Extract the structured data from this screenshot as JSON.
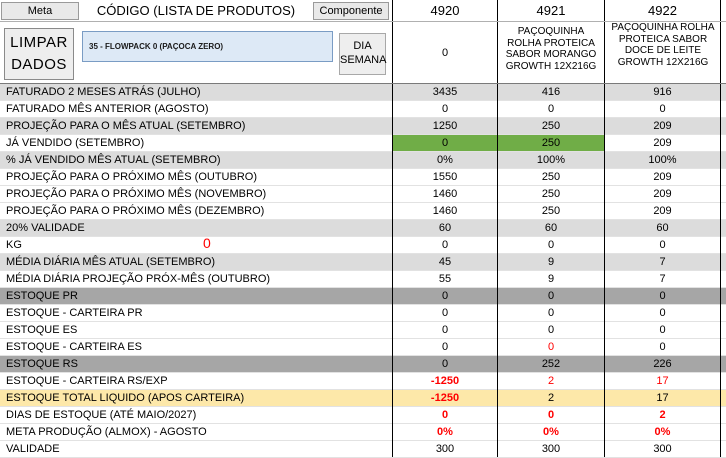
{
  "header": {
    "meta_button": "Meta",
    "title": "CÓDIGO (LISTA DE PRODUTOS)",
    "component_button": "Componente",
    "codes": [
      "4920",
      "4921",
      "4922"
    ]
  },
  "controls": {
    "limpar_line1": "LIMPAR",
    "limpar_line2": "DADOS",
    "product_selected": "35 - FLOWPACK 0 (PAÇOCA ZERO)",
    "dia_line1": "DIA",
    "dia_line2": "SEMANA"
  },
  "product_names": {
    "first": "0",
    "second": "PAÇOQUINHA ROLHA PROTEICA SABOR MORANGO GROWTH 12X216G",
    "third": "PAÇOQUINHA ROLHA PROTEICA SABOR DOCE DE LEITE GROWTH 12X216G"
  },
  "kg_flag": "0",
  "rows": [
    {
      "label": "FATURADO 2 MESES ATRÁS (JULHO)",
      "values": [
        "3435",
        "416",
        "916"
      ],
      "style": "light"
    },
    {
      "label": "FATURADO MÊS ANTERIOR (AGOSTO)",
      "values": [
        "0",
        "0",
        "0"
      ],
      "style": "white"
    },
    {
      "label": "PROJEÇÃO PARA O MÊS ATUAL (SETEMBRO)",
      "values": [
        "1250",
        "250",
        "209"
      ],
      "style": "light"
    },
    {
      "label": "JÁ VENDIDO (SETEMBRO)",
      "values": [
        "0",
        "250",
        "209"
      ],
      "style": "white"
    },
    {
      "label": "% JÁ VENDIDO MÊS ATUAL (SETEMBRO)",
      "values": [
        "0%",
        "100%",
        "100%"
      ],
      "style": "light"
    },
    {
      "label": "PROJEÇÃO PARA O PRÓXIMO MÊS (OUTUBRO)",
      "values": [
        "1550",
        "250",
        "209"
      ],
      "style": "white"
    },
    {
      "label": "PROJEÇÃO PARA O PRÓXIMO MÊS (NOVEMBRO)",
      "values": [
        "1460",
        "250",
        "209"
      ],
      "style": "white"
    },
    {
      "label": "PROJEÇÃO PARA O PRÓXIMO MÊS (DEZEMBRO)",
      "values": [
        "1460",
        "250",
        "209"
      ],
      "style": "white"
    },
    {
      "label": "20% VALIDADE",
      "values": [
        "60",
        "60",
        "60"
      ],
      "style": "light"
    },
    {
      "label": "KG",
      "values": [
        "0",
        "0",
        "0"
      ],
      "style": "white"
    },
    {
      "label": "MÉDIA DIÁRIA MÊS ATUAL (SETEMBRO)",
      "values": [
        "45",
        "9",
        "7"
      ],
      "style": "light"
    },
    {
      "label": "MÉDIA DIÁRIA PROJEÇÃO PRÓX-MÊS (OUTUBRO)",
      "values": [
        "55",
        "9",
        "7"
      ],
      "style": "white"
    },
    {
      "label": "ESTOQUE PR",
      "values": [
        "0",
        "0",
        "0"
      ],
      "style": "dark"
    },
    {
      "label": "ESTOQUE - CARTEIRA PR",
      "values": [
        "0",
        "0",
        "0"
      ],
      "style": "white"
    },
    {
      "label": "ESTOQUE ES",
      "values": [
        "0",
        "0",
        "0"
      ],
      "style": "white"
    },
    {
      "label": "ESTOQUE - CARTEIRA ES",
      "values": [
        "0",
        "0",
        "0"
      ],
      "style": "white"
    },
    {
      "label": "ESTOQUE RS",
      "values": [
        "0",
        "252",
        "226"
      ],
      "style": "dark"
    },
    {
      "label": "ESTOQUE - CARTEIRA RS/EXP",
      "values": [
        "-1250",
        "2",
        "17"
      ],
      "style": "white"
    },
    {
      "label": "ESTOQUE TOTAL LIQUIDO (APOS CARTEIRA)",
      "values": [
        "-1250",
        "2",
        "17"
      ],
      "style": "yellow"
    },
    {
      "label": "DIAS DE ESTOQUE (ATÉ MAIO/2027)",
      "values": [
        "0",
        "0",
        "2"
      ],
      "style": "white"
    },
    {
      "label": "META PRODUÇÃO (ALMOX) - AGOSTO",
      "values": [
        "0%",
        "0%",
        "0%"
      ],
      "style": "white"
    },
    {
      "label": "VALIDADE",
      "values": [
        "300",
        "300",
        "300"
      ],
      "style": "white"
    }
  ],
  "colors": {
    "green_highlight": "#70ad47",
    "negative_red": "#ff0000",
    "light_gray_row": "#dcdcdc",
    "dark_gray_row": "#a6a6a6",
    "yellow_row": "#fde8a9"
  }
}
